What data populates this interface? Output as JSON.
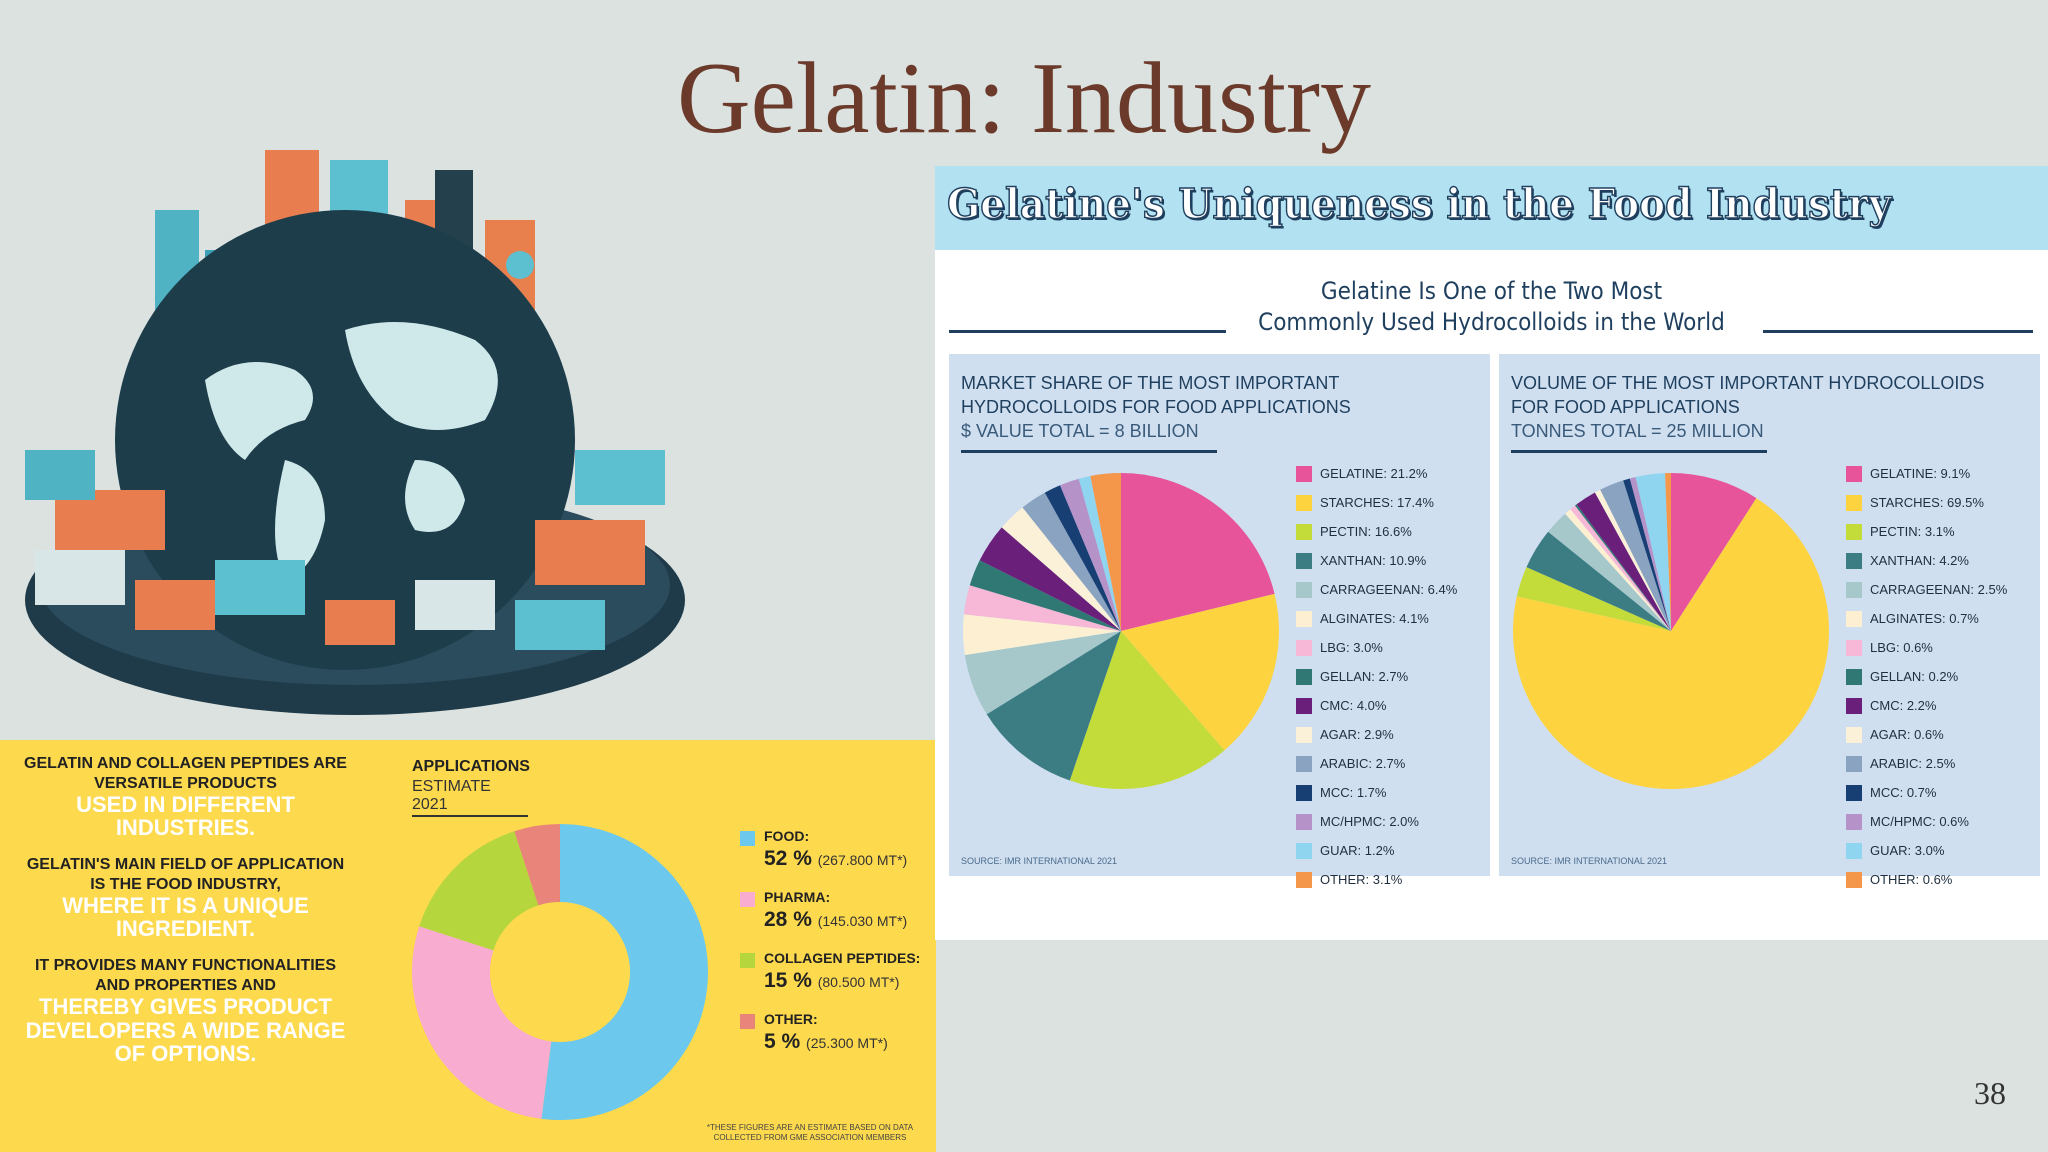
{
  "slide": {
    "title": "Gelatin: Industry",
    "page_number": "38"
  },
  "colors": {
    "background": "#dbe2e0",
    "title": "#6b3a2a",
    "yellow_panel": "#fdd94e",
    "banner": "#b2e1f1",
    "navy": "#1f3f5e",
    "chart_box": "#cfdff0"
  },
  "applications_panel": {
    "blocks": [
      {
        "dark": "GELATIN AND COLLAGEN PEPTIDES ARE VERSATILE PRODUCTS",
        "light": "USED IN DIFFERENT INDUSTRIES."
      },
      {
        "dark": "GELATIN'S MAIN FIELD OF APPLICATION IS THE FOOD INDUSTRY,",
        "light": "WHERE IT IS A UNIQUE INGREDIENT."
      },
      {
        "dark": "IT PROVIDES MANY FUNCTIONALITIES AND PROPERTIES AND",
        "light": "THEREBY GIVES PRODUCT DEVELOPERS A WIDE RANGE OF OPTIONS."
      }
    ],
    "chart_title": "APPLICATIONS",
    "chart_subtitle": "ESTIMATE 2021",
    "footnote": "*THESE FIGURES ARE AN ESTIMATE BASED ON DATA COLLECTED FROM GME ASSOCIATION MEMBERS"
  },
  "infographic": {
    "banner": "Gelatine's Uniqueness in the Food Industry",
    "subtitle_line1": "Gelatine Is One of the Two Most",
    "subtitle_line2": "Commonly Used Hydrocolloids in the World",
    "left_box": {
      "title_line1": "MARKET SHARE OF THE MOST IMPORTANT",
      "title_line2": "HYDROCOLLOIDS FOR FOOD APPLICATIONS",
      "total": "$ VALUE TOTAL = 8 BILLION",
      "source": "SOURCE: IMR INTERNATIONAL 2021"
    },
    "right_box": {
      "title_line1": "VOLUME OF THE MOST IMPORTANT HYDROCOLLOIDS",
      "title_line2": "FOR FOOD APPLICATIONS",
      "total": "TONNES TOTAL = 25 MILLION",
      "source": "SOURCE: IMR INTERNATIONAL 2021"
    }
  },
  "chart_data": [
    {
      "type": "pie",
      "donut": true,
      "title": "APPLICATIONS",
      "subtitle": "ESTIMATE 2021",
      "legend": "right",
      "slices": [
        {
          "label": "FOOD:",
          "value": 52,
          "value_label": "52 %",
          "mt": "(267.800 MT*)",
          "color": "#6cc8ec"
        },
        {
          "label": "PHARMA:",
          "value": 28,
          "value_label": "28 %",
          "mt": "(145.030 MT*)",
          "color": "#f8acd0"
        },
        {
          "label": "COLLAGEN PEPTIDES:",
          "value": 15,
          "value_label": "15 %",
          "mt": "(80.500 MT*)",
          "color": "#b5d63c"
        },
        {
          "label": "OTHER:",
          "value": 5,
          "value_label": "5 %",
          "mt": "(25.300 MT*)",
          "color": "#e8847a"
        }
      ]
    },
    {
      "type": "pie",
      "title": "MARKET SHARE OF THE MOST IMPORTANT HYDROCOLLOIDS FOR FOOD APPLICATIONS",
      "subtitle": "$ VALUE TOTAL = 8 BILLION",
      "legend": "right",
      "slices": [
        {
          "label": "GELATINE: 21.2%",
          "value": 21.2,
          "color": "#e8549a"
        },
        {
          "label": "STARCHES: 17.4%",
          "value": 17.4,
          "color": "#fdd340"
        },
        {
          "label": "PECTIN: 16.6%",
          "value": 16.6,
          "color": "#c3dc3a"
        },
        {
          "label": "XANTHAN: 10.9%",
          "value": 10.9,
          "color": "#3c7d84"
        },
        {
          "label": "CARRAGEENAN: 6.4%",
          "value": 6.4,
          "color": "#a6c8cb"
        },
        {
          "label": "ALGINATES: 4.1%",
          "value": 4.1,
          "color": "#fdf0d2"
        },
        {
          "label": "LBG: 3.0%",
          "value": 3.0,
          "color": "#f6b8d6"
        },
        {
          "label": "GELLAN: 2.7%",
          "value": 2.7,
          "color": "#2f7874"
        },
        {
          "label": "CMC: 4.0%",
          "value": 4.0,
          "color": "#6a1f7a"
        },
        {
          "label": "AGAR: 2.9%",
          "value": 2.9,
          "color": "#fbf0d8"
        },
        {
          "label": "ARABIC: 2.7%",
          "value": 2.7,
          "color": "#8aa3c1"
        },
        {
          "label": "MCC: 1.7%",
          "value": 1.7,
          "color": "#173f74"
        },
        {
          "label": "MC/HPMC: 2.0%",
          "value": 2.0,
          "color": "#b592c8"
        },
        {
          "label": "GUAR: 1.2%",
          "value": 1.2,
          "color": "#8fd5f0"
        },
        {
          "label": "OTHER: 3.1%",
          "value": 3.1,
          "color": "#f4974a"
        }
      ]
    },
    {
      "type": "pie",
      "title": "VOLUME OF THE MOST IMPORTANT HYDROCOLLOIDS FOR FOOD APPLICATIONS",
      "subtitle": "TONNES TOTAL = 25 MILLION",
      "legend": "right",
      "slices": [
        {
          "label": "GELATINE: 9.1%",
          "value": 9.1,
          "color": "#e8549a"
        },
        {
          "label": "STARCHES: 69.5%",
          "value": 69.5,
          "color": "#fdd340"
        },
        {
          "label": "PECTIN: 3.1%",
          "value": 3.1,
          "color": "#c3dc3a"
        },
        {
          "label": "XANTHAN: 4.2%",
          "value": 4.2,
          "color": "#3c7d84"
        },
        {
          "label": "CARRAGEENAN: 2.5%",
          "value": 2.5,
          "color": "#a6c8cb"
        },
        {
          "label": "ALGINATES: 0.7%",
          "value": 0.7,
          "color": "#fdf0d2"
        },
        {
          "label": "LBG: 0.6%",
          "value": 0.6,
          "color": "#f6b8d6"
        },
        {
          "label": "GELLAN: 0.2%",
          "value": 0.2,
          "color": "#2f7874"
        },
        {
          "label": "CMC: 2.2%",
          "value": 2.2,
          "color": "#6a1f7a"
        },
        {
          "label": "AGAR: 0.6%",
          "value": 0.6,
          "color": "#fbf0d8"
        },
        {
          "label": "ARABIC: 2.5%",
          "value": 2.5,
          "color": "#8aa3c1"
        },
        {
          "label": "MCC: 0.7%",
          "value": 0.7,
          "color": "#173f74"
        },
        {
          "label": "MC/HPMC: 0.6%",
          "value": 0.6,
          "color": "#b592c8"
        },
        {
          "label": "GUAR: 3.0%",
          "value": 3.0,
          "color": "#8fd5f0"
        },
        {
          "label": "OTHER: 0.6%",
          "value": 0.6,
          "color": "#f4974a"
        }
      ]
    }
  ]
}
